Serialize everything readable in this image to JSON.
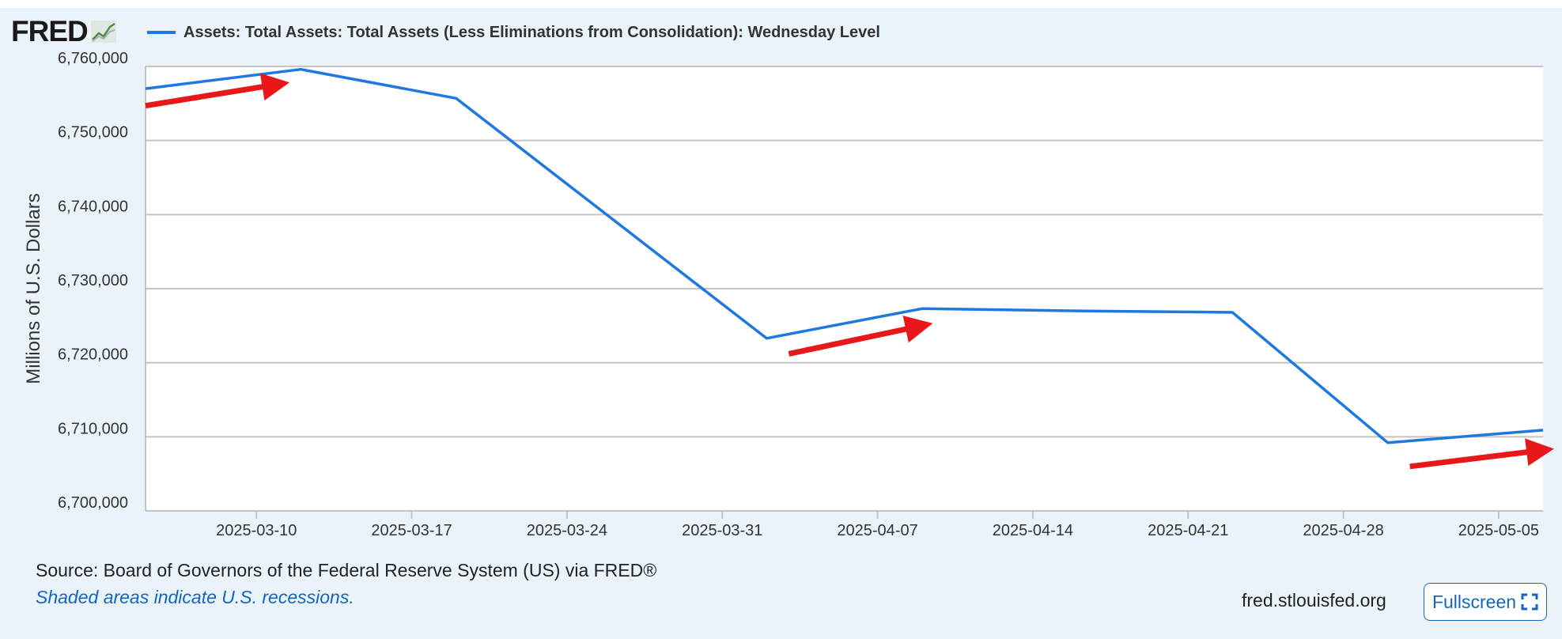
{
  "brand": {
    "logo_text": "FRED"
  },
  "chart_data": {
    "type": "line",
    "title": "",
    "xlabel": "",
    "ylabel": "Millions of U.S. Dollars",
    "ylim": [
      6700000,
      6760000
    ],
    "grid": true,
    "series": [
      {
        "name": "Assets: Total Assets: Total Assets (Less Eliminations from Consolidation): Wednesday Level",
        "color": "#1f77e0",
        "x": [
          "2025-03-05",
          "2025-03-12",
          "2025-03-19",
          "2025-03-26",
          "2025-04-02",
          "2025-04-09",
          "2025-04-16",
          "2025-04-23",
          "2025-04-30",
          "2025-05-07"
        ],
        "values": [
          6757000,
          6759600,
          6755700,
          6739500,
          6723300,
          6727300,
          6727000,
          6726800,
          6709200,
          6710900
        ]
      }
    ],
    "x_ticks": [
      "2025-03-10",
      "2025-03-17",
      "2025-03-24",
      "2025-03-31",
      "2025-04-07",
      "2025-04-14",
      "2025-04-21",
      "2025-04-28",
      "2025-05-05"
    ],
    "y_ticks": [
      "6,700,000",
      "6,710,000",
      "6,720,000",
      "6,730,000",
      "6,740,000",
      "6,750,000",
      "6,760,000"
    ],
    "y_tick_values": [
      6700000,
      6710000,
      6720000,
      6730000,
      6740000,
      6750000,
      6760000
    ],
    "annotations": [
      {
        "type": "arrow",
        "color": "#e8181a",
        "from": [
          "2025-03-05",
          6754700
        ],
        "to": [
          "2025-03-11",
          6757600
        ]
      },
      {
        "type": "arrow",
        "color": "#e8181a",
        "from": [
          "2025-04-03",
          6721200
        ],
        "to": [
          "2025-04-09",
          6725000
        ]
      },
      {
        "type": "arrow",
        "color": "#e8181a",
        "from": [
          "2025-05-01",
          6706000
        ],
        "to": [
          "2025-05-07",
          6708200
        ]
      }
    ]
  },
  "footer": {
    "source": "Source: Board of Governors of the Federal Reserve System (US) via FRED®",
    "note": "Shaded areas indicate U.S. recessions.",
    "site": "fred.stlouisfed.org",
    "fullscreen_label": "Fullscreen"
  }
}
